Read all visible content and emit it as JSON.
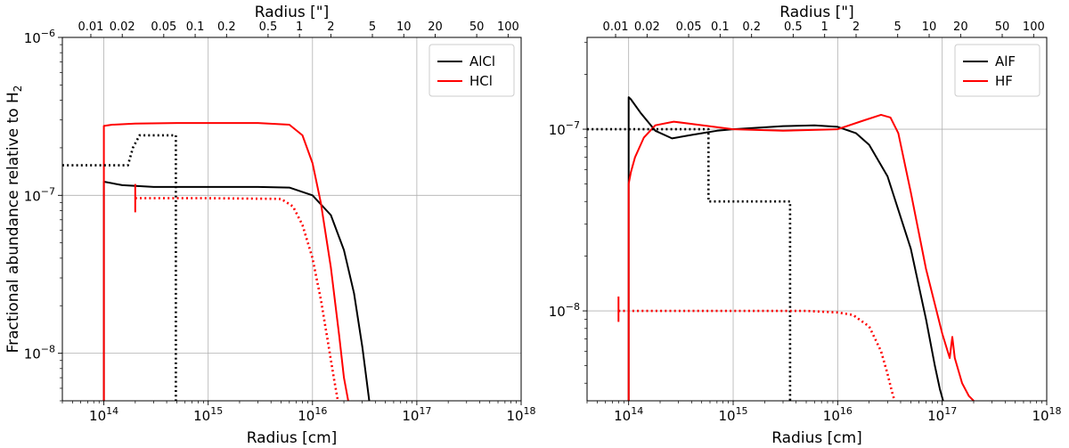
{
  "chart_data": [
    {
      "type": "line",
      "xscale": "log",
      "yscale": "log",
      "xlim": [
        40000000000000.0,
        1e+18
      ],
      "ylim": [
        5e-09,
        1e-06
      ],
      "xlabel": "Radius [cm]",
      "ylabel": "Fractional abundance relative to H",
      "ylabel_subscript": "2",
      "top_axis_label": "Radius [\"]",
      "x_ticks": [
        {
          "value": 100000000000000.0,
          "base": "10",
          "exp": "14"
        },
        {
          "value": 1000000000000000.0,
          "base": "10",
          "exp": "15"
        },
        {
          "value": 1e+16,
          "base": "10",
          "exp": "16"
        },
        {
          "value": 1e+17,
          "base": "10",
          "exp": "17"
        },
        {
          "value": 1e+18,
          "base": "10",
          "exp": "18"
        }
      ],
      "y_ticks": [
        {
          "value": 1e-08,
          "base": "10",
          "exp": "−8"
        },
        {
          "value": 1e-07,
          "base": "10",
          "exp": "−7"
        },
        {
          "value": 1e-06,
          "base": "10",
          "exp": "−6"
        }
      ],
      "top_ticks": [
        {
          "label": "0.01",
          "value_cm": 75000000000000.0
        },
        {
          "label": "0.02",
          "value_cm": 150000000000000.0
        },
        {
          "label": "0.05",
          "value_cm": 375000000000000.0
        },
        {
          "label": "0.1",
          "value_cm": 750000000000000.0
        },
        {
          "label": "0.2",
          "value_cm": 1500000000000000.0
        },
        {
          "label": "0.5",
          "value_cm": 3750000000000000.0
        },
        {
          "label": "1",
          "value_cm": 7500000000000000.0
        },
        {
          "label": "2",
          "value_cm": 1.5e+16
        },
        {
          "label": "5",
          "value_cm": 3.75e+16
        },
        {
          "label": "10",
          "value_cm": 7.5e+16
        },
        {
          "label": "20",
          "value_cm": 1.5e+17
        },
        {
          "label": "50",
          "value_cm": 3.75e+17
        },
        {
          "label": "100",
          "value_cm": 7.5e+17
        }
      ],
      "legend": {
        "position": "top-right",
        "entries": [
          {
            "name": "AlCl",
            "color": "#000000"
          },
          {
            "name": "HCl",
            "color": "#ff0000"
          }
        ]
      },
      "series": [
        {
          "name": "AlCl model",
          "color": "#000000",
          "style": "solid",
          "x": [
            100000000000000.0,
            100000000000000.0,
            150000000000000.0,
            300000000000000.0,
            1000000000000000.0,
            3000000000000000.0,
            6000000000000000.0,
            1e+16,
            1.5e+16,
            2e+16,
            2.5e+16,
            3e+16,
            3.5e+16
          ],
          "y": [
            5e-09,
            1.22e-07,
            1.16e-07,
            1.13e-07,
            1.13e-07,
            1.13e-07,
            1.12e-07,
            1e-07,
            7.5e-08,
            4.5e-08,
            2.4e-08,
            1.1e-08,
            5e-09
          ]
        },
        {
          "name": "HCl model",
          "color": "#ff0000",
          "style": "solid",
          "x": [
            100000000000000.0,
            100000000000000.0,
            120000000000000.0,
            200000000000000.0,
            500000000000000.0,
            1000000000000000.0,
            3000000000000000.0,
            6000000000000000.0,
            8000000000000000.0,
            1e+16,
            1.2e+16,
            1.5e+16,
            1.8e+16,
            2e+16,
            2.2e+16
          ],
          "y": [
            5e-09,
            2.75e-07,
            2.8e-07,
            2.85e-07,
            2.87e-07,
            2.87e-07,
            2.87e-07,
            2.8e-07,
            2.4e-07,
            1.6e-07,
            9e-08,
            3.5e-08,
            1.3e-08,
            7e-09,
            5e-09
          ]
        },
        {
          "name": "AlCl retrieved",
          "color": "#000000",
          "style": "dotted",
          "x": [
            40000000000000.0,
            170000000000000.0,
            190000000000000.0,
            220000000000000.0,
            490000000000000.0,
            490000000000000.0
          ],
          "y": [
            1.55e-07,
            1.55e-07,
            2e-07,
            2.4e-07,
            2.4e-07,
            5e-09
          ]
        },
        {
          "name": "HCl retrieved",
          "color": "#ff0000",
          "style": "dotted",
          "x": [
            200000000000000.0,
            1000000000000000.0,
            5000000000000000.0,
            6500000000000000.0,
            8000000000000000.0,
            1e+16,
            1.2e+16,
            1.4e+16,
            1.6e+16,
            1.75e+16
          ],
          "y": [
            9.6e-08,
            9.6e-08,
            9.5e-08,
            8.5e-08,
            6.5e-08,
            4e-08,
            2.2e-08,
            1.2e-08,
            7e-09,
            5e-09
          ]
        },
        {
          "name": "HCl marker",
          "color": "#ff0000",
          "style": "solid",
          "x": [
            200000000000000.0,
            200000000000000.0
          ],
          "y": [
            7.8e-08,
            1.18e-07
          ]
        }
      ]
    },
    {
      "type": "line",
      "xscale": "log",
      "yscale": "log",
      "xlim": [
        40000000000000.0,
        1e+18
      ],
      "ylim": [
        3.2e-09,
        3.2e-07
      ],
      "xlabel": "Radius [cm]",
      "ylabel": "",
      "top_axis_label": "Radius [\"]",
      "x_ticks": [
        {
          "value": 100000000000000.0,
          "base": "10",
          "exp": "14"
        },
        {
          "value": 1000000000000000.0,
          "base": "10",
          "exp": "15"
        },
        {
          "value": 1e+16,
          "base": "10",
          "exp": "16"
        },
        {
          "value": 1e+17,
          "base": "10",
          "exp": "17"
        },
        {
          "value": 1e+18,
          "base": "10",
          "exp": "18"
        }
      ],
      "y_ticks": [
        {
          "value": 1e-08,
          "base": "10",
          "exp": "−8"
        },
        {
          "value": 1e-07,
          "base": "10",
          "exp": "−7"
        }
      ],
      "top_ticks": [
        {
          "label": "0.01",
          "value_cm": 75000000000000.0
        },
        {
          "label": "0.02",
          "value_cm": 150000000000000.0
        },
        {
          "label": "0.05",
          "value_cm": 375000000000000.0
        },
        {
          "label": "0.1",
          "value_cm": 750000000000000.0
        },
        {
          "label": "0.2",
          "value_cm": 1500000000000000.0
        },
        {
          "label": "0.5",
          "value_cm": 3750000000000000.0
        },
        {
          "label": "1",
          "value_cm": 7500000000000000.0
        },
        {
          "label": "2",
          "value_cm": 1.5e+16
        },
        {
          "label": "5",
          "value_cm": 3.75e+16
        },
        {
          "label": "10",
          "value_cm": 7.5e+16
        },
        {
          "label": "20",
          "value_cm": 1.5e+17
        },
        {
          "label": "50",
          "value_cm": 3.75e+17
        },
        {
          "label": "100",
          "value_cm": 7.5e+17
        }
      ],
      "legend": {
        "position": "top-right",
        "entries": [
          {
            "name": "AlF",
            "color": "#000000"
          },
          {
            "name": "HF",
            "color": "#ff0000"
          }
        ]
      },
      "series": [
        {
          "name": "AlF model",
          "color": "#000000",
          "style": "solid",
          "x": [
            100000000000000.0,
            100000000000000.0,
            105000000000000.0,
            130000000000000.0,
            180000000000000.0,
            260000000000000.0,
            400000000000000.0,
            700000000000000.0,
            1000000000000000.0,
            3000000000000000.0,
            6000000000000000.0,
            1e+16,
            1.5e+16,
            2e+16,
            3e+16,
            5e+16,
            7e+16,
            8.5e+16,
            9.5e+16,
            1.02e+17
          ],
          "y": [
            3.2e-09,
            1.5e-07,
            1.46e-07,
            1.23e-07,
            9.8e-08,
            8.9e-08,
            9.3e-08,
            9.8e-08,
            1e-07,
            1.04e-07,
            1.05e-07,
            1.03e-07,
            9.5e-08,
            8.2e-08,
            5.5e-08,
            2.2e-08,
            9e-09,
            5e-09,
            3.7e-09,
            3.2e-09
          ]
        },
        {
          "name": "HF model",
          "color": "#ff0000",
          "style": "solid",
          "x": [
            100000000000000.0,
            100000000000000.0,
            105000000000000.0,
            115000000000000.0,
            140000000000000.0,
            180000000000000.0,
            270000000000000.0,
            400000000000000.0,
            1000000000000000.0,
            3000000000000000.0,
            1e+16,
            1.8e+16,
            2.6e+16,
            3.2e+16,
            3.8e+16,
            5e+16,
            7e+16,
            1e+17,
            1.18e+17,
            1.25e+17,
            1.32e+17,
            1.55e+17,
            1.8e+17,
            2e+17
          ],
          "y": [
            3.2e-09,
            5e-08,
            5.8e-08,
            7e-08,
            9e-08,
            1.05e-07,
            1.1e-07,
            1.07e-07,
            1e-07,
            9.8e-08,
            1e-07,
            1.12e-07,
            1.2e-07,
            1.16e-07,
            9.5e-08,
            4.5e-08,
            1.7e-08,
            7.5e-09,
            5.5e-09,
            7.2e-09,
            5.5e-09,
            4e-09,
            3.4e-09,
            3.2e-09
          ]
        },
        {
          "name": "AlF retrieved",
          "color": "#000000",
          "style": "dotted",
          "x": [
            40000000000000.0,
            580000000000000.0,
            580000000000000.0,
            3500000000000000.0,
            3500000000000000.0
          ],
          "y": [
            1e-07,
            1e-07,
            4e-08,
            4e-08,
            3.2e-09
          ]
        },
        {
          "name": "HF retrieved",
          "color": "#ff0000",
          "style": "dotted",
          "x": [
            80000000000000.0,
            1000000000000000.0,
            5000000000000000.0,
            1e+16,
            1.4e+16,
            2e+16,
            2.6e+16,
            3e+16,
            3.3e+16,
            3.5e+16
          ],
          "y": [
            1e-08,
            1e-08,
            1e-08,
            9.8e-09,
            9.5e-09,
            8.2e-09,
            6e-09,
            4.5e-09,
            3.6e-09,
            3.2e-09
          ]
        },
        {
          "name": "HF marker",
          "color": "#ff0000",
          "style": "solid",
          "x": [
            80000000000000.0,
            80000000000000.0
          ],
          "y": [
            8.7e-09,
            1.2e-08
          ]
        }
      ]
    }
  ]
}
